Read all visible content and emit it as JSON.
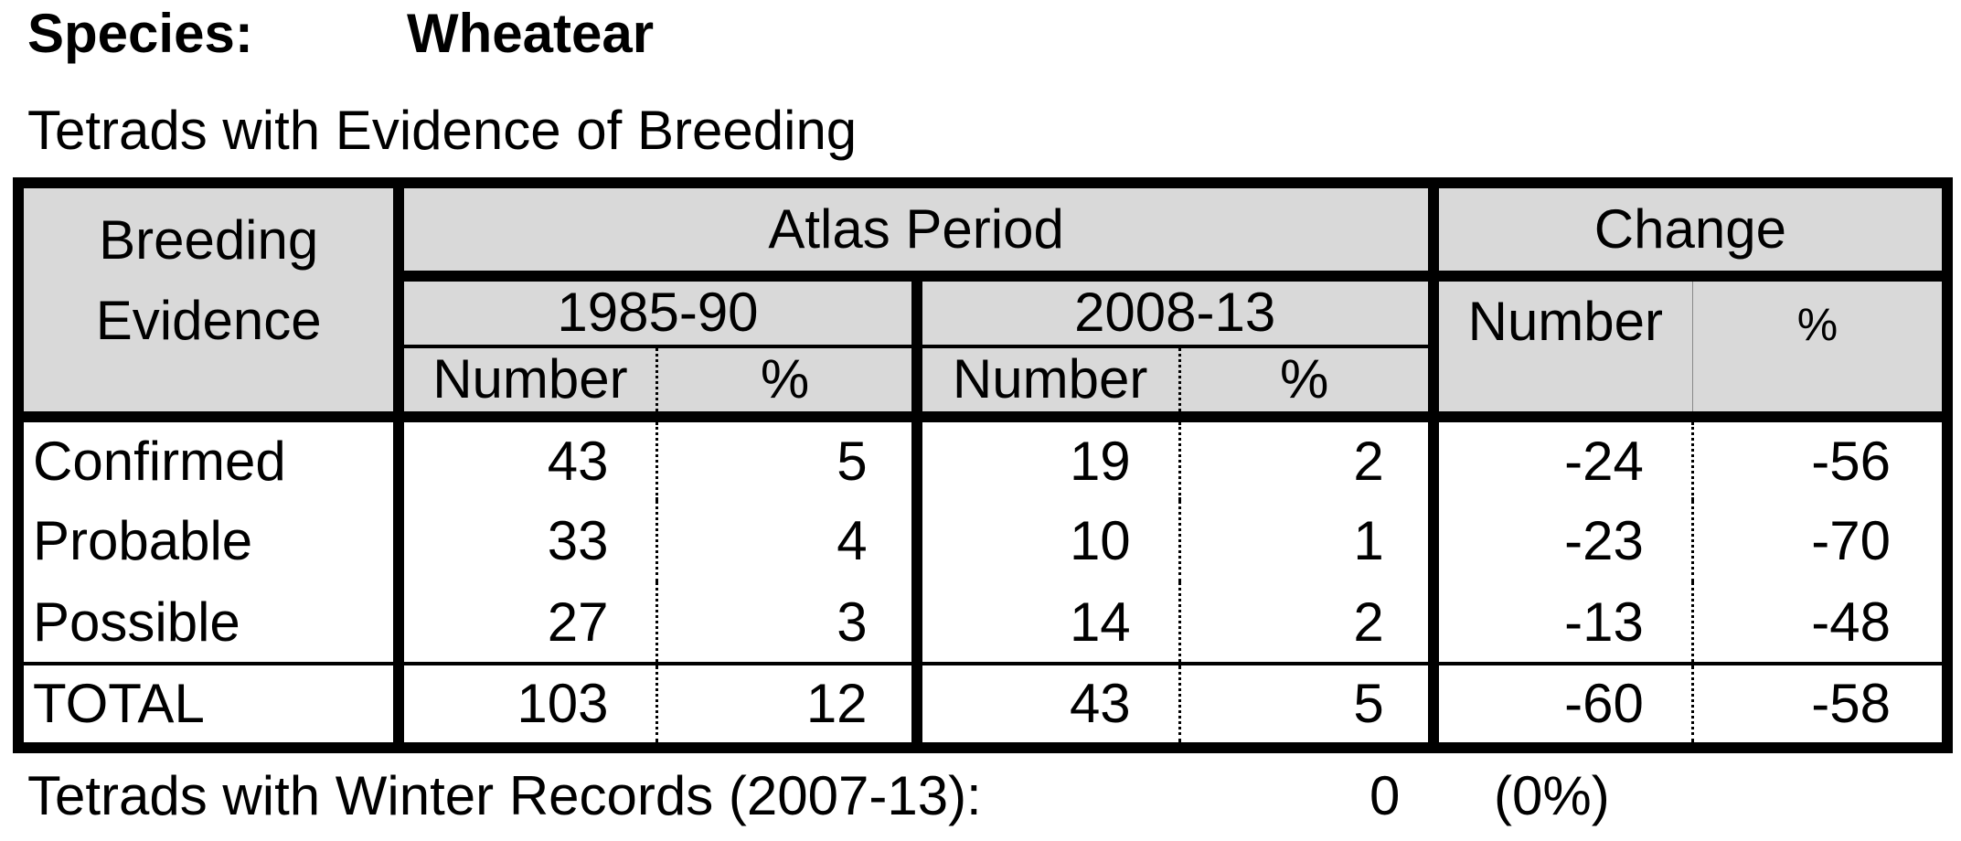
{
  "species": {
    "label": "Species:",
    "name": "Wheatear"
  },
  "subtitle": "Tetrads with Evidence of Breeding",
  "table": {
    "headers": {
      "breeding_evidence_line1": "Breeding",
      "breeding_evidence_line2": "Evidence",
      "atlas_period": "Atlas Period",
      "change": "Change",
      "period1": "1985-90",
      "period2": "2008-13",
      "number": "Number",
      "percent": "%"
    },
    "rows": [
      {
        "label": "Confirmed",
        "p1_number": "43",
        "p1_pct": "5",
        "p2_number": "19",
        "p2_pct": "2",
        "change_number": "-24",
        "change_pct": "-56"
      },
      {
        "label": "Probable",
        "p1_number": "33",
        "p1_pct": "4",
        "p2_number": "10",
        "p2_pct": "1",
        "change_number": "-23",
        "change_pct": "-70"
      },
      {
        "label": "Possible",
        "p1_number": "27",
        "p1_pct": "3",
        "p2_number": "14",
        "p2_pct": "2",
        "change_number": "-13",
        "change_pct": "-48"
      }
    ],
    "total": {
      "label": "TOTAL",
      "p1_number": "103",
      "p1_pct": "12",
      "p2_number": "43",
      "p2_pct": "5",
      "change_number": "-60",
      "change_pct": "-58"
    }
  },
  "winter": {
    "label": "Tetrads with Winter Records (2007-13):",
    "count": "0",
    "percent": "(0%)"
  }
}
